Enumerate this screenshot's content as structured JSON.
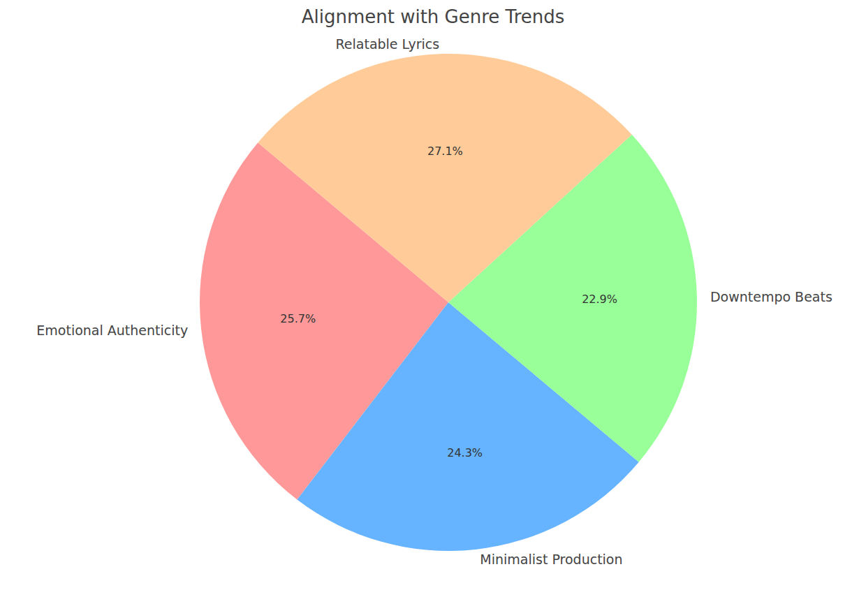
{
  "chart_data": {
    "type": "pie",
    "title": "Alignment with Genre Trends",
    "categories": [
      "Emotional Authenticity",
      "Minimalist Production",
      "Downtempo Beats",
      "Relatable Lyrics"
    ],
    "values": [
      25.7,
      24.3,
      22.9,
      27.1
    ],
    "value_labels": [
      "25.7%",
      "24.3%",
      "22.9%",
      "27.1%"
    ],
    "colors": [
      "#ff9999",
      "#66b3ff",
      "#99ff99",
      "#ffcc99"
    ],
    "data_labels": true
  }
}
